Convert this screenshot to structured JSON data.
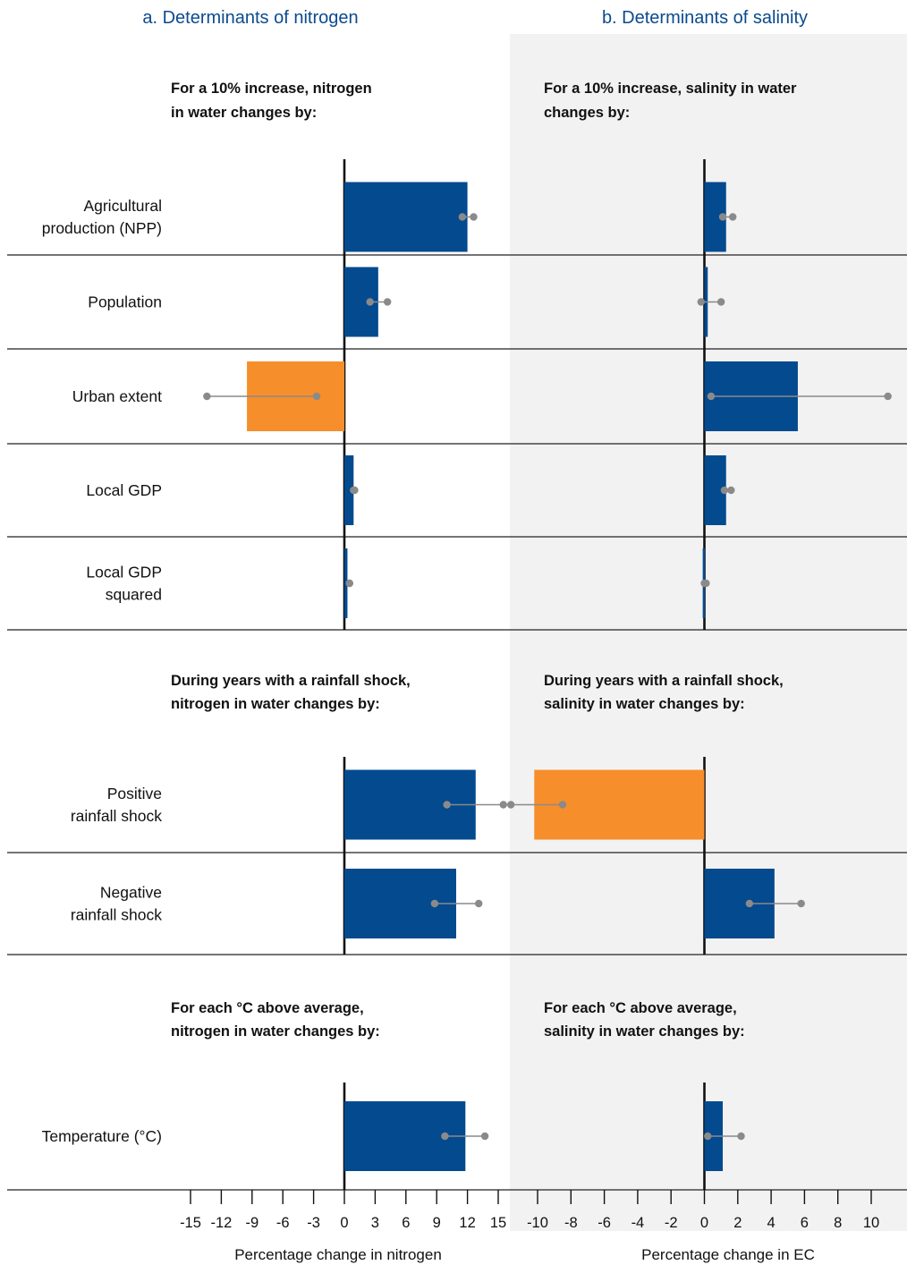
{
  "chart_data": [
    {
      "type": "bar",
      "title": "a. Determinants of nitrogen",
      "xlabel": "Percentage change in nitrogen",
      "xlim": [
        -15,
        15
      ],
      "ticks": [
        "-15",
        "-12",
        "-9",
        "-6",
        "-3",
        "0",
        "3",
        "6",
        "9",
        "12",
        "15"
      ],
      "sections": [
        {
          "heading": [
            "For a 10% increase, nitrogen",
            "in water changes by:"
          ],
          "rows": [
            {
              "label": [
                "Agricultural",
                "production (NPP)"
              ],
              "value": 12.0,
              "ci": [
                11.5,
                12.6
              ],
              "color": "#034a8f"
            },
            {
              "label": [
                "Population"
              ],
              "value": 3.3,
              "ci": [
                2.5,
                4.2
              ],
              "color": "#034a8f"
            },
            {
              "label": [
                "Urban extent"
              ],
              "value": -9.5,
              "ci": [
                -13.4,
                -2.7
              ],
              "color": "#f68e2b"
            },
            {
              "label": [
                "Local GDP"
              ],
              "value": 0.9,
              "ci": [
                0.9,
                1.0
              ],
              "color": "#034a8f"
            },
            {
              "label": [
                "Local GDP",
                "squared"
              ],
              "value": 0.3,
              "ci": [
                0.5,
                0.5
              ],
              "color": "#034a8f"
            }
          ]
        },
        {
          "heading": [
            "During years with a rainfall shock,",
            "nitrogen in water changes by:"
          ],
          "rows": [
            {
              "label": [
                "Positive",
                "rainfall shock"
              ],
              "value": 12.8,
              "ci": [
                10.0,
                15.5
              ],
              "color": "#034a8f"
            },
            {
              "label": [
                "Negative",
                "rainfall shock"
              ],
              "value": 10.9,
              "ci": [
                8.8,
                13.1
              ],
              "color": "#034a8f"
            }
          ]
        },
        {
          "heading": [
            "For each °C above average,",
            "nitrogen in water changes by:"
          ],
          "rows": [
            {
              "label": [
                "Temperature (°C)"
              ],
              "value": 11.8,
              "ci": [
                9.8,
                13.7
              ],
              "color": "#034a8f"
            }
          ]
        }
      ]
    },
    {
      "type": "bar",
      "title": "b. Determinants of salinity",
      "xlabel": "Percentage change in EC",
      "xlim": [
        -10,
        10
      ],
      "ticks": [
        "-10",
        "-8",
        "-6",
        "-4",
        "-2",
        "0",
        "2",
        "4",
        "6",
        "8",
        "10"
      ],
      "sections": [
        {
          "heading": [
            "For a 10% increase, salinity in water",
            "changes by:"
          ],
          "rows": [
            {
              "label": [
                "Agricultural",
                "production (NPP)"
              ],
              "value": 1.3,
              "ci": [
                1.1,
                1.7
              ],
              "color": "#034a8f"
            },
            {
              "label": [
                "Population"
              ],
              "value": 0.2,
              "ci": [
                -0.2,
                1.0
              ],
              "color": "#034a8f"
            },
            {
              "label": [
                "Urban extent"
              ],
              "value": 5.6,
              "ci": [
                0.4,
                11.0
              ],
              "color": "#034a8f"
            },
            {
              "label": [
                "Local GDP"
              ],
              "value": 1.3,
              "ci": [
                1.2,
                1.6
              ],
              "color": "#034a8f"
            },
            {
              "label": [
                "Local GDP",
                "squared"
              ],
              "value": -0.1,
              "ci": [
                0.0,
                0.1
              ],
              "color": "#034a8f"
            }
          ]
        },
        {
          "heading": [
            "During years with a rainfall shock,",
            "salinity in water changes by:"
          ],
          "rows": [
            {
              "label": [
                "Positive",
                "rainfall shock"
              ],
              "value": -10.2,
              "ci": [
                -11.6,
                -8.5
              ],
              "color": "#f68e2b"
            },
            {
              "label": [
                "Negative",
                "rainfall shock"
              ],
              "value": 4.2,
              "ci": [
                2.7,
                5.8
              ],
              "color": "#034a8f"
            }
          ]
        },
        {
          "heading": [
            "For each °C above average,",
            "salinity in water changes by:"
          ],
          "rows": [
            {
              "label": [
                "Temperature (°C)"
              ],
              "value": 1.1,
              "ci": [
                0.2,
                2.2
              ],
              "color": "#034a8f"
            }
          ]
        }
      ]
    }
  ],
  "colors": {
    "blue": "#034a8f",
    "orange": "#f68e2b",
    "ci": "#8a8a8a",
    "shade": "#f2f2f2"
  }
}
